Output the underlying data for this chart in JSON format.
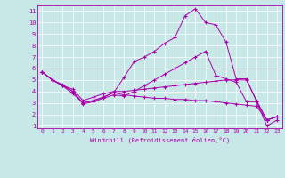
{
  "xlabel": "Windchill (Refroidissement éolien,°C)",
  "bg_color": "#c8e8e8",
  "line_color": "#aa00aa",
  "xlim": [
    -0.5,
    23.5
  ],
  "ylim": [
    0.8,
    11.5
  ],
  "xticks": [
    0,
    1,
    2,
    3,
    4,
    5,
    6,
    7,
    8,
    9,
    10,
    11,
    12,
    13,
    14,
    15,
    16,
    17,
    18,
    19,
    20,
    21,
    22,
    23
  ],
  "yticks": [
    1,
    2,
    3,
    4,
    5,
    6,
    7,
    8,
    9,
    10,
    11
  ],
  "lines": [
    [
      0,
      5.7,
      1,
      5.0,
      2,
      4.6,
      3,
      4.0,
      4,
      3.0,
      5,
      3.2,
      6,
      3.5,
      7,
      3.9,
      8,
      5.2,
      9,
      6.6,
      10,
      7.0,
      11,
      7.5,
      12,
      8.2,
      13,
      8.7,
      14,
      10.6,
      15,
      11.2,
      16,
      10.0,
      17,
      9.8,
      18,
      8.3,
      19,
      5.1,
      20,
      5.1,
      21,
      3.1,
      22,
      1.0,
      23,
      1.5
    ],
    [
      0,
      5.7,
      1,
      5.0,
      2,
      4.5,
      3,
      3.8,
      4,
      3.0,
      5,
      3.2,
      6,
      3.5,
      7,
      3.9,
      8,
      3.7,
      9,
      3.6,
      10,
      3.5,
      11,
      3.4,
      12,
      3.4,
      13,
      3.3,
      14,
      3.3,
      15,
      3.2,
      16,
      3.2,
      17,
      3.1,
      18,
      3.0,
      19,
      2.9,
      20,
      2.8,
      21,
      2.7,
      22,
      1.5,
      23,
      1.8
    ],
    [
      0,
      5.7,
      1,
      5.0,
      2,
      4.5,
      3,
      4.2,
      4,
      3.2,
      5,
      3.5,
      6,
      3.8,
      7,
      4.0,
      8,
      4.0,
      9,
      4.1,
      10,
      4.2,
      11,
      4.3,
      12,
      4.4,
      13,
      4.5,
      14,
      4.6,
      15,
      4.7,
      16,
      4.8,
      17,
      4.9,
      18,
      5.0,
      19,
      5.0,
      20,
      5.0,
      21,
      3.2,
      22,
      1.5,
      23,
      1.8
    ],
    [
      0,
      5.7,
      1,
      5.0,
      2,
      4.5,
      3,
      4.0,
      4,
      2.9,
      5,
      3.1,
      6,
      3.4,
      7,
      3.7,
      8,
      3.6,
      9,
      4.0,
      10,
      4.5,
      11,
      5.0,
      12,
      5.5,
      13,
      6.0,
      14,
      6.5,
      15,
      7.0,
      16,
      7.5,
      17,
      5.4,
      18,
      5.1,
      19,
      4.8,
      20,
      3.1,
      21,
      3.1,
      22,
      1.5,
      23,
      1.8
    ]
  ]
}
